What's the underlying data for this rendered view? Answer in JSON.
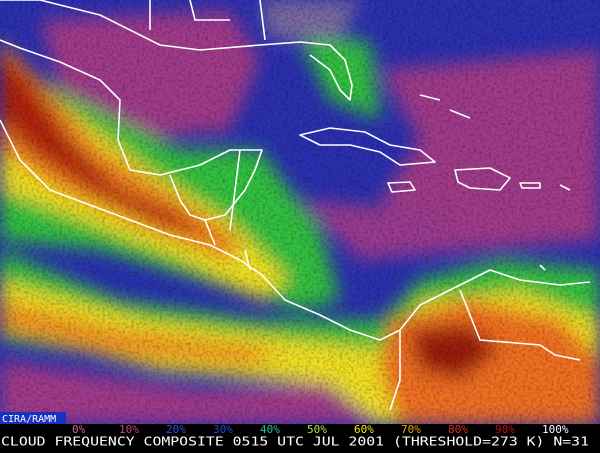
{
  "credit": "CIRA/RAMM",
  "legend": {
    "items": [
      {
        "label": "0%",
        "color": "#d060a0"
      },
      {
        "label": "10%",
        "color": "#d04080"
      },
      {
        "label": "20%",
        "color": "#3050e0"
      },
      {
        "label": "30%",
        "color": "#2848d0"
      },
      {
        "label": "40%",
        "color": "#20c0a0"
      },
      {
        "label": "50%",
        "color": "#b0e040"
      },
      {
        "label": "60%",
        "color": "#f0f000"
      },
      {
        "label": "70%",
        "color": "#f0a000"
      },
      {
        "label": "80%",
        "color": "#e03020"
      },
      {
        "label": "90%",
        "color": "#c01010"
      },
      {
        "label": "100%",
        "color": "#ffffff"
      }
    ]
  },
  "caption": "CLOUD FREQUENCY COMPOSITE 0515 UTC JUL 2001 (THRESHOLD=273 K) N=31"
}
